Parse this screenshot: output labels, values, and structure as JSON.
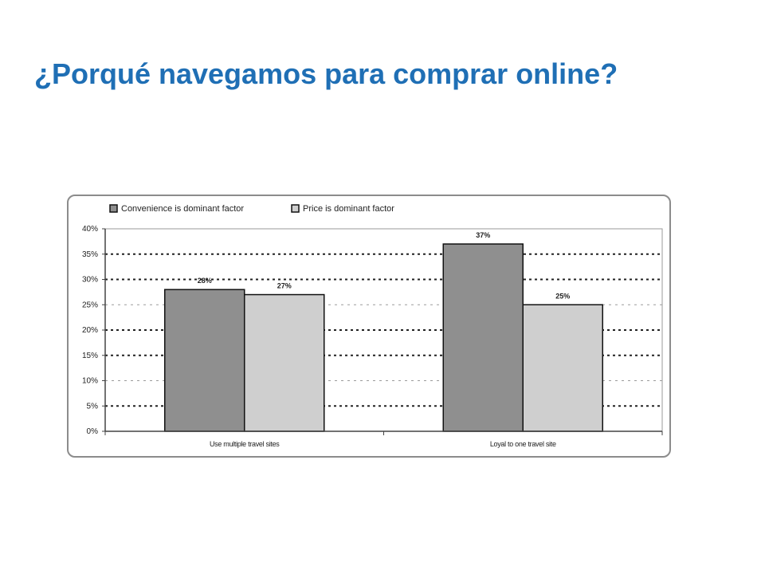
{
  "slide": {
    "title": "¿Porqué navegamos para comprar online?"
  },
  "chart_data": {
    "type": "bar",
    "categories": [
      "Use multiple travel sites",
      "Loyal to one travel site"
    ],
    "series": [
      {
        "name": "Convenience is dominant factor",
        "values": [
          28,
          37
        ],
        "labels": [
          "28%",
          "37%"
        ],
        "color": "#8f8f8f"
      },
      {
        "name": "Price is dominant factor",
        "values": [
          27,
          25
        ],
        "labels": [
          "27%",
          "25%"
        ],
        "color": "#cfcfcf"
      }
    ],
    "yticks": [
      "0%",
      "5%",
      "10%",
      "15%",
      "20%",
      "25%",
      "30%",
      "35%",
      "40%"
    ],
    "ylim": [
      0,
      40
    ],
    "grid": true,
    "legend": "top-left"
  }
}
